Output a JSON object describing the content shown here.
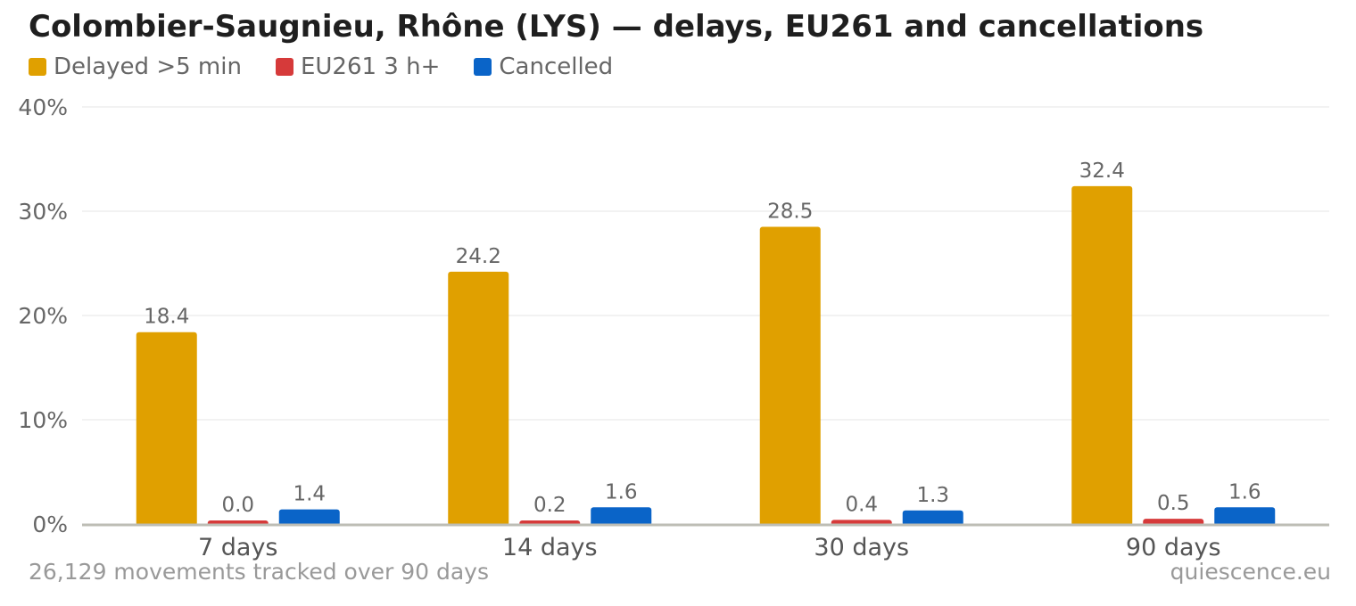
{
  "chart_data": {
    "type": "bar",
    "title": "Colombier-Saugnieu, Rhône (LYS) — delays, EU261 and cancellations",
    "categories": [
      "7 days",
      "14 days",
      "30 days",
      "90 days"
    ],
    "series": [
      {
        "name": "Delayed >5 min",
        "color": "#e0a000",
        "values": [
          18.4,
          24.2,
          28.5,
          32.4
        ],
        "labels": [
          "18.4",
          "24.2",
          "28.5",
          "32.4"
        ]
      },
      {
        "name": "EU261 3 h+",
        "color": "#d63a3a",
        "values": [
          0.0,
          0.2,
          0.4,
          0.5
        ],
        "labels": [
          "0.0",
          "0.2",
          "0.4",
          "0.5"
        ]
      },
      {
        "name": "Cancelled",
        "color": "#0a64c8",
        "values": [
          1.4,
          1.6,
          1.3,
          1.6
        ],
        "labels": [
          "1.4",
          "1.6",
          "1.3",
          "1.6"
        ]
      }
    ],
    "ylim": [
      0,
      40
    ],
    "yticks": [
      0,
      10,
      20,
      30,
      40
    ],
    "ytick_labels": [
      "0%",
      "10%",
      "20%",
      "30%",
      "40%"
    ],
    "xlabel": "",
    "ylabel": "",
    "grid": true,
    "legend_position": "top-left"
  },
  "footnote": "26,129 movements tracked over 90 days",
  "source": "quiescence.eu"
}
